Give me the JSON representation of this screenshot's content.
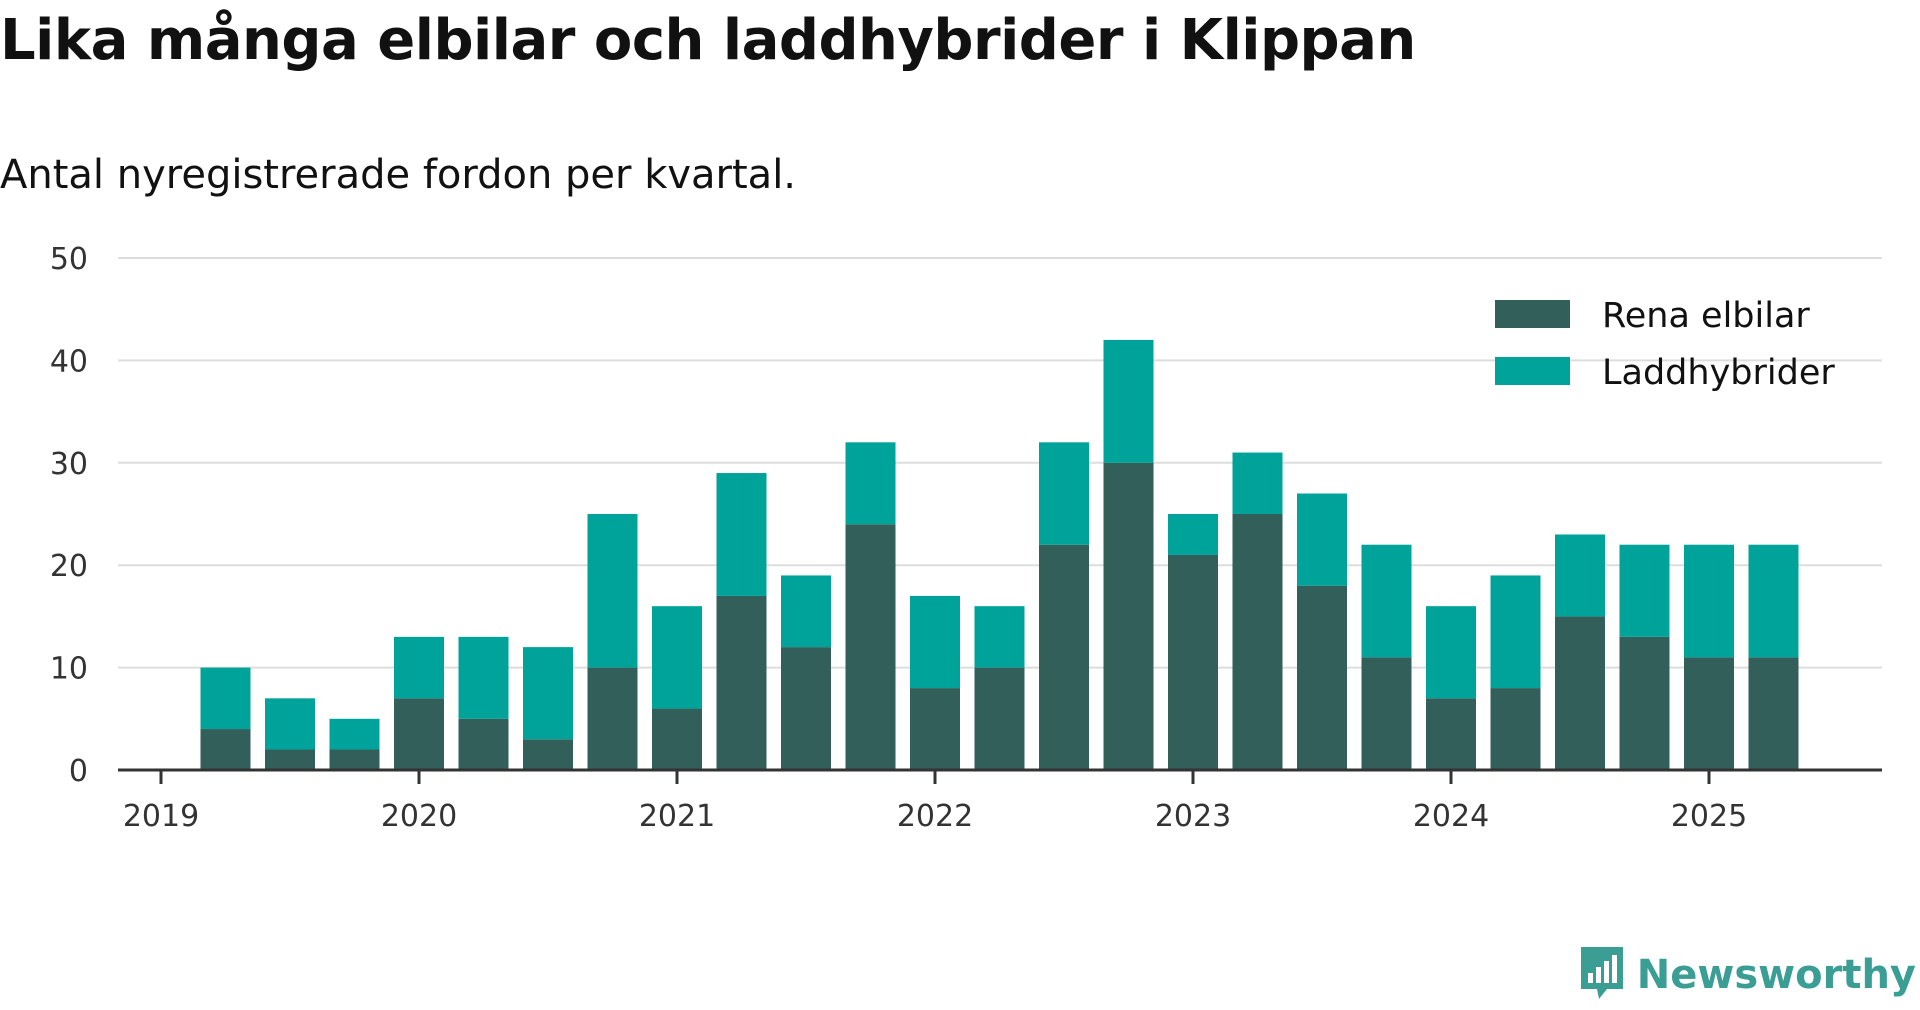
{
  "title": "Lika många elbilar och laddhybrider i Klippan",
  "subtitle": "Antal nyregistrerade fordon per kvartal.",
  "brand": {
    "name": "Newsworthy",
    "icon": "newsworthy-logo-icon",
    "color": "#3a9e94"
  },
  "chart_data": {
    "type": "bar",
    "stacked": true,
    "categories": [
      "2019 Q2",
      "2019 Q3",
      "2019 Q4",
      "2020 Q1",
      "2020 Q2",
      "2020 Q3",
      "2020 Q4",
      "2021 Q1",
      "2021 Q2",
      "2021 Q3",
      "2021 Q4",
      "2022 Q1",
      "2022 Q2",
      "2022 Q3",
      "2022 Q4",
      "2023 Q1",
      "2023 Q2",
      "2023 Q3",
      "2023 Q4",
      "2024 Q1",
      "2024 Q2",
      "2024 Q3",
      "2024 Q4",
      "2025 Q1",
      "2025 Q2"
    ],
    "series": [
      {
        "name": "Rena elbilar",
        "color": "#335f5b",
        "values": [
          4,
          2,
          2,
          7,
          5,
          3,
          10,
          6,
          17,
          12,
          24,
          8,
          10,
          22,
          30,
          21,
          25,
          18,
          11,
          7,
          8,
          15,
          13,
          11,
          11
        ]
      },
      {
        "name": "Laddhybrider",
        "color": "#00a39a",
        "values": [
          6,
          5,
          3,
          6,
          8,
          9,
          15,
          10,
          12,
          7,
          8,
          9,
          6,
          10,
          12,
          4,
          6,
          9,
          11,
          9,
          11,
          8,
          9,
          11,
          11
        ]
      }
    ],
    "x_tick_labels": [
      "2019",
      "2020",
      "2021",
      "2022",
      "2023",
      "2024",
      "2025"
    ],
    "y_ticks": [
      "0",
      "10",
      "20",
      "30",
      "40",
      "50"
    ],
    "ylim": [
      0,
      50
    ],
    "grid": true,
    "legend_placement": "top-right"
  }
}
